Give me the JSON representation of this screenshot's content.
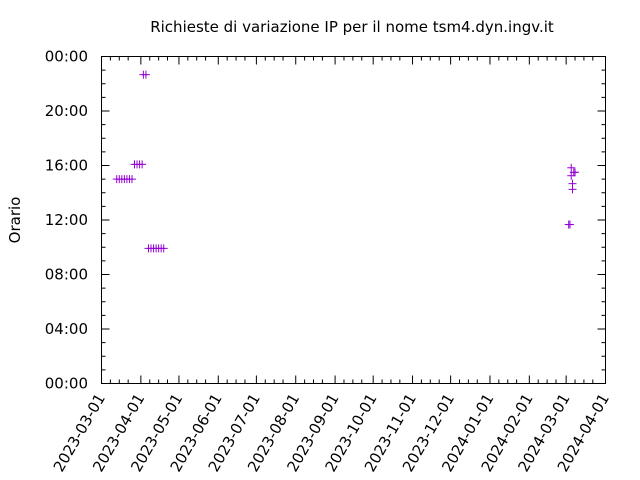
{
  "chart_data": {
    "type": "scatter",
    "title": "Richieste di variazione IP per il nome tsm4.dyn.ingv.it",
    "xlabel": "",
    "ylabel": "Orario",
    "xlim": [
      "2023-03-01",
      "2024-04-01"
    ],
    "ylim": [
      "00:00",
      "24:00"
    ],
    "grid": false,
    "legend": "none",
    "marker": "+",
    "marker_color": "#9400d3",
    "x_ticks": [
      "2023-03-01",
      "2023-04-01",
      "2023-05-01",
      "2023-06-01",
      "2023-07-01",
      "2023-08-01",
      "2023-09-01",
      "2023-10-01",
      "2023-11-01",
      "2023-12-01",
      "2024-01-01",
      "2024-02-01",
      "2024-03-01",
      "2024-04-01"
    ],
    "y_ticks": [
      "00:00",
      "04:00",
      "08:00",
      "12:00",
      "16:00",
      "20:00",
      "00:00"
    ],
    "points": [
      {
        "x": "2023-03-13",
        "y": "15:00"
      },
      {
        "x": "2023-03-15",
        "y": "15:00"
      },
      {
        "x": "2023-03-17",
        "y": "15:00"
      },
      {
        "x": "2023-03-19",
        "y": "15:00"
      },
      {
        "x": "2023-03-21",
        "y": "15:00"
      },
      {
        "x": "2023-03-23",
        "y": "15:00"
      },
      {
        "x": "2023-03-25",
        "y": "15:00"
      },
      {
        "x": "2023-03-27",
        "y": "16:05"
      },
      {
        "x": "2023-03-29",
        "y": "16:05"
      },
      {
        "x": "2023-03-31",
        "y": "16:05"
      },
      {
        "x": "2023-04-02",
        "y": "16:05"
      },
      {
        "x": "2023-04-03",
        "y": "22:40"
      },
      {
        "x": "2023-04-05",
        "y": "22:40"
      },
      {
        "x": "2023-04-07",
        "y": "09:55"
      },
      {
        "x": "2023-04-09",
        "y": "09:55"
      },
      {
        "x": "2023-04-11",
        "y": "09:55"
      },
      {
        "x": "2023-04-13",
        "y": "09:55"
      },
      {
        "x": "2023-04-15",
        "y": "09:55"
      },
      {
        "x": "2023-04-17",
        "y": "09:55"
      },
      {
        "x": "2023-04-19",
        "y": "09:55"
      },
      {
        "x": "2024-03-03",
        "y": "11:40"
      },
      {
        "x": "2024-03-04",
        "y": "11:40"
      },
      {
        "x": "2024-03-05",
        "y": "15:50"
      },
      {
        "x": "2024-03-05",
        "y": "15:15"
      },
      {
        "x": "2024-03-06",
        "y": "14:40"
      },
      {
        "x": "2024-03-06",
        "y": "14:15"
      },
      {
        "x": "2024-03-07",
        "y": "15:30"
      },
      {
        "x": "2024-03-08",
        "y": "15:30"
      }
    ]
  }
}
